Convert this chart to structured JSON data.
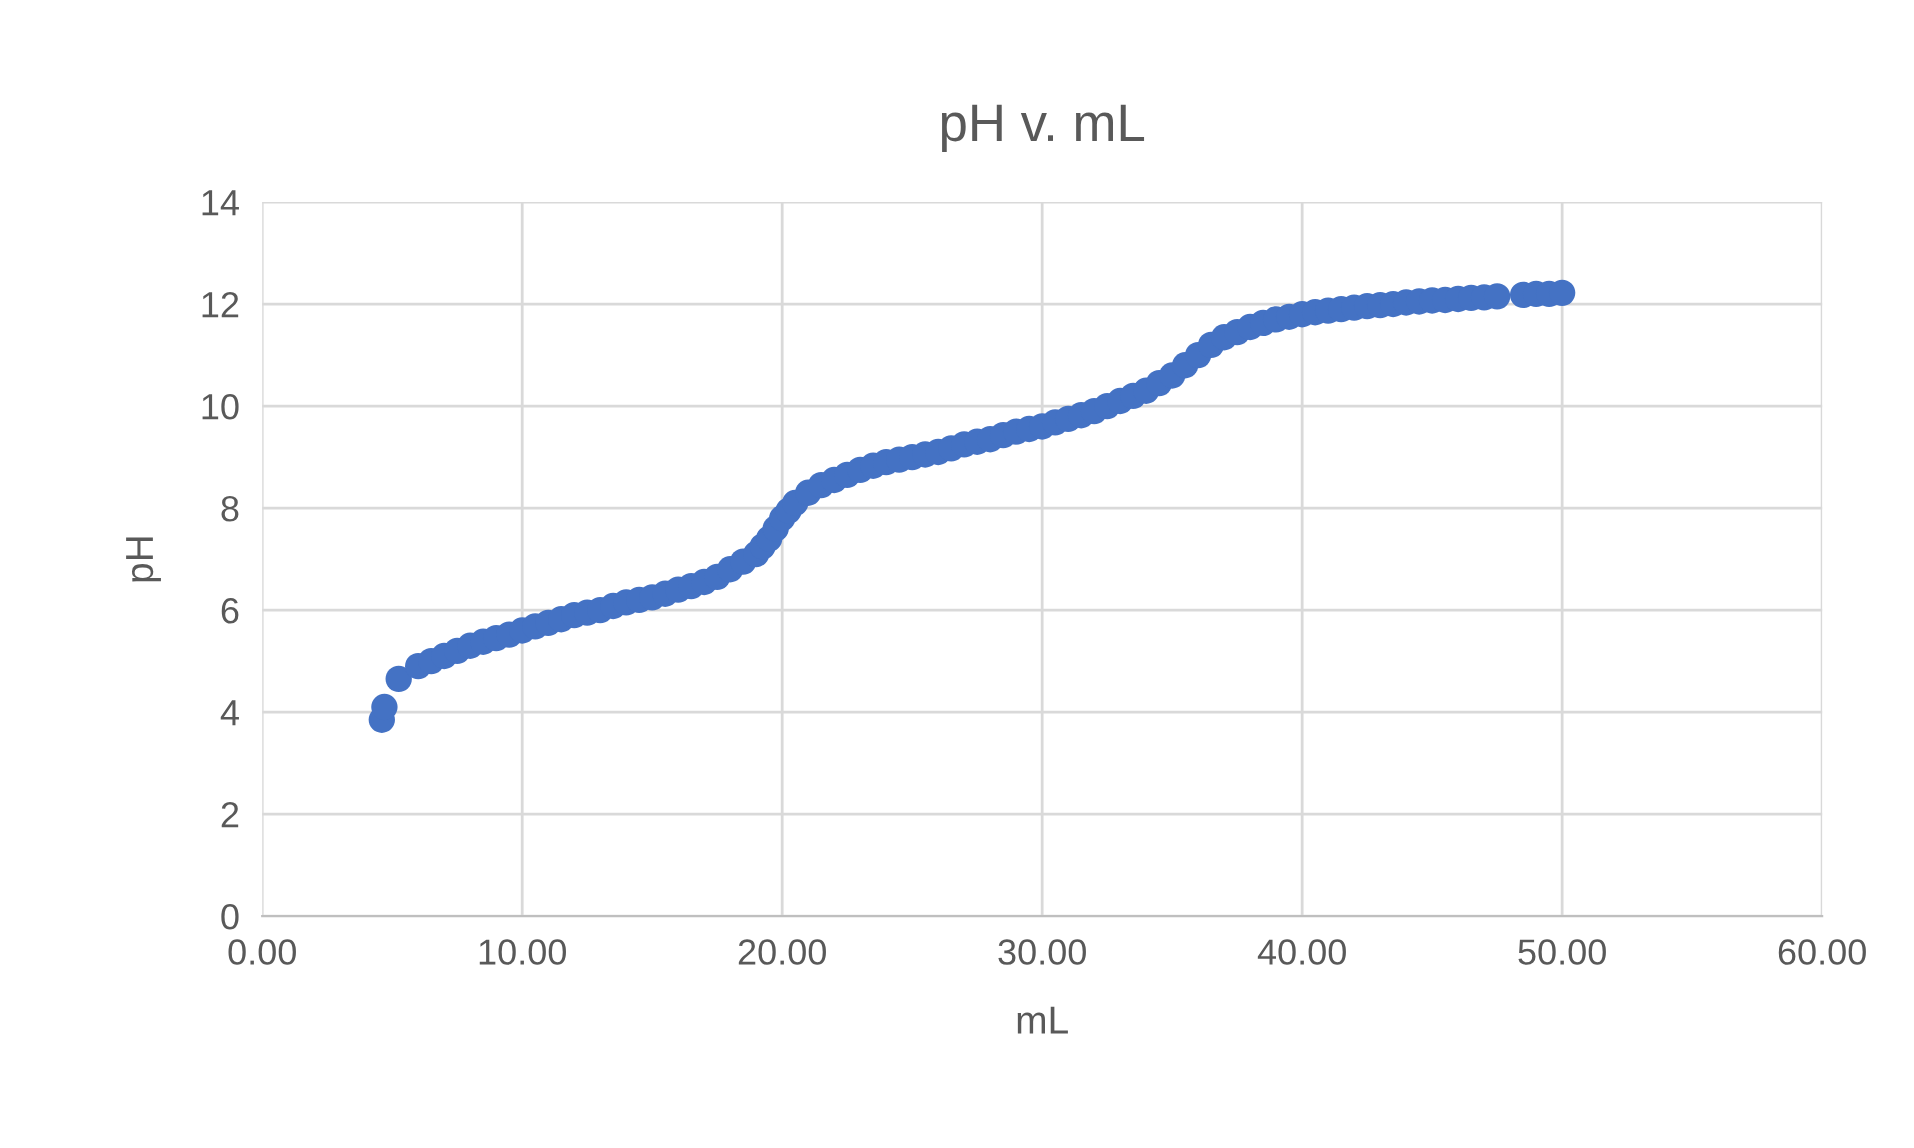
{
  "chart_data": {
    "type": "scatter",
    "title": "pH v. mL",
    "xlabel": "mL",
    "ylabel": "pH",
    "series": [
      {
        "color": "#4472c4",
        "x": [
          4.6,
          4.7,
          5.25,
          6,
          6.5,
          7,
          7.5,
          8,
          8.5,
          9,
          9.5,
          10,
          10.5,
          11,
          11.5,
          12,
          12.5,
          13,
          13.5,
          14,
          14.5,
          15,
          15.5,
          16,
          16.5,
          17,
          17.5,
          18,
          18.5,
          19,
          19.25,
          19.5,
          19.75,
          20,
          20.25,
          20.5,
          21,
          21.5,
          22,
          22.5,
          23,
          23.5,
          24,
          24.5,
          25,
          25.5,
          26,
          26.5,
          27,
          27.5,
          28,
          28.5,
          29,
          29.5,
          30,
          30.5,
          31,
          31.5,
          32,
          32.5,
          33,
          33.5,
          34,
          34.5,
          35,
          35.5,
          36,
          36.5,
          37,
          37.5,
          38,
          38.5,
          39,
          39.5,
          40,
          40.5,
          41,
          41.5,
          42,
          42.5,
          43,
          43.5,
          44,
          44.5,
          45,
          45.5,
          46,
          46.5,
          47,
          47.5,
          48.5,
          49,
          49.5,
          50
        ],
        "values": [
          3.85,
          4.1,
          4.65,
          4.9,
          5.0,
          5.1,
          5.2,
          5.3,
          5.38,
          5.45,
          5.52,
          5.6,
          5.68,
          5.75,
          5.82,
          5.9,
          5.95,
          6.0,
          6.08,
          6.15,
          6.2,
          6.25,
          6.32,
          6.4,
          6.47,
          6.55,
          6.65,
          6.8,
          6.95,
          7.1,
          7.25,
          7.4,
          7.6,
          7.8,
          7.95,
          8.1,
          8.3,
          8.45,
          8.55,
          8.65,
          8.75,
          8.83,
          8.9,
          8.95,
          9.0,
          9.05,
          9.1,
          9.17,
          9.25,
          9.3,
          9.35,
          9.43,
          9.5,
          9.55,
          9.6,
          9.68,
          9.75,
          9.82,
          9.9,
          10.0,
          10.1,
          10.2,
          10.3,
          10.45,
          10.6,
          10.8,
          11.0,
          11.2,
          11.35,
          11.45,
          11.55,
          11.63,
          11.7,
          11.75,
          11.8,
          11.84,
          11.87,
          11.9,
          11.93,
          11.96,
          11.98,
          12.0,
          12.03,
          12.05,
          12.07,
          12.08,
          12.1,
          12.12,
          12.13,
          12.15,
          12.18,
          12.2,
          12.2,
          12.22
        ]
      }
    ],
    "xlim": [
      0,
      60
    ],
    "ylim": [
      0,
      14
    ],
    "xticks": [
      {
        "value": 0,
        "label": "0.00"
      },
      {
        "value": 10,
        "label": "10.00"
      },
      {
        "value": 20,
        "label": "20.00"
      },
      {
        "value": 30,
        "label": "30.00"
      },
      {
        "value": 40,
        "label": "40.00"
      },
      {
        "value": 50,
        "label": "50.00"
      },
      {
        "value": 60,
        "label": "60.00"
      }
    ],
    "yticks": [
      0,
      2,
      4,
      6,
      8,
      10,
      12,
      14
    ],
    "grid": true,
    "marker": "circle",
    "legend": false
  }
}
